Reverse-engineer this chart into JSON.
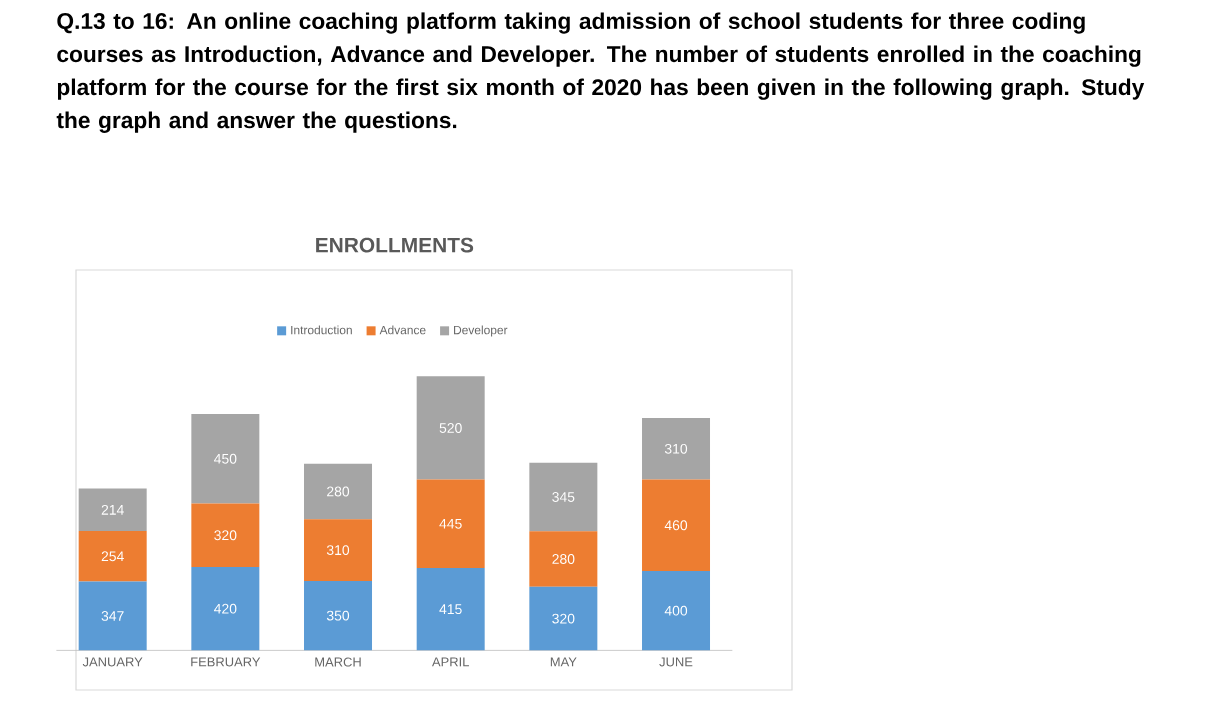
{
  "chart_data": {
    "type": "bar",
    "stacked": true,
    "title": "ENROLLMENTS",
    "annotations": [
      "Q.13 to 16: An online coaching platform taking admission of school students for three coding courses as Introduction, Advance and Developer. The number of students enrolled in the coaching platform for the course for the first six month of 2020 has been given in the following graph. Study the graph and answer the questions."
    ],
    "categories": [
      "JANUARY",
      "FEBRUARY",
      "MARCH",
      "APRIL",
      "MAY",
      "JUNE"
    ],
    "series": [
      {
        "name": "Introduction",
        "color": "#5b9bd5",
        "values": [
          347,
          420,
          350,
          415,
          320,
          400
        ]
      },
      {
        "name": "Advance",
        "color": "#ed7d31",
        "values": [
          254,
          320,
          310,
          445,
          280,
          460
        ]
      },
      {
        "name": "Developer",
        "color": "#a5a5a5",
        "values": [
          214,
          450,
          280,
          520,
          345,
          310
        ]
      }
    ],
    "data_labels": true,
    "legend": "top",
    "tick_labels": "x",
    "grid": false
  }
}
